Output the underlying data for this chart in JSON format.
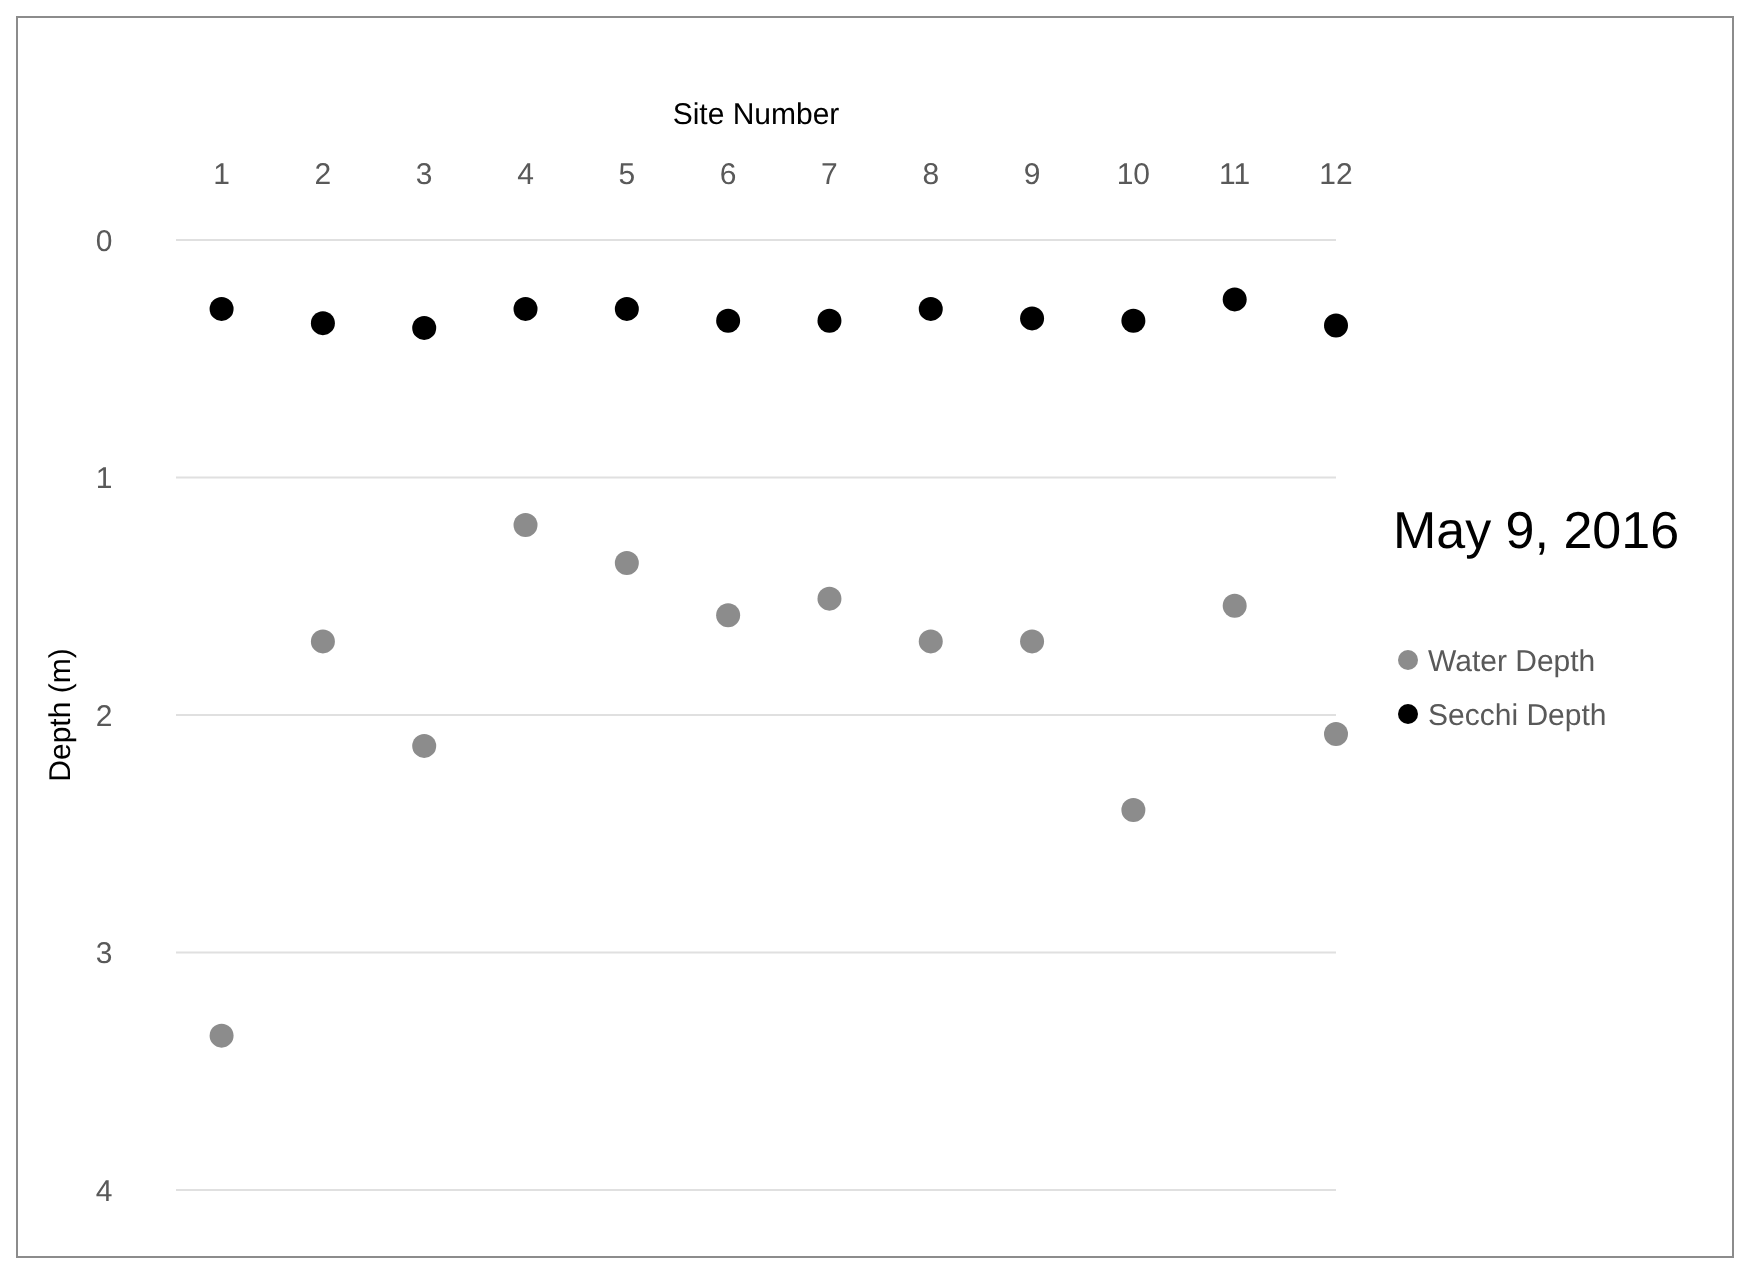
{
  "chart_data": {
    "type": "scatter",
    "title": "May 9, 2016",
    "xlabel": "Site Number",
    "ylabel": "Depth (m)",
    "x": [
      1,
      2,
      3,
      4,
      5,
      6,
      7,
      8,
      9,
      10,
      11,
      12
    ],
    "xlim": [
      0.55,
      12
    ],
    "xticks": [
      1,
      2,
      3,
      4,
      5,
      6,
      7,
      8,
      9,
      10,
      11,
      12
    ],
    "ylim": [
      4,
      0
    ],
    "yticks": [
      0,
      1,
      2,
      3,
      4
    ],
    "grid": "y",
    "legend": "right",
    "marker": "circle",
    "series": [
      {
        "name": "Water Depth",
        "color": "#8c8c8c",
        "values": [
          3.35,
          1.69,
          2.13,
          1.2,
          1.36,
          1.58,
          1.51,
          1.69,
          1.69,
          2.4,
          1.54,
          2.08
        ]
      },
      {
        "name": "Secchi Depth",
        "color": "#000000",
        "values": [
          0.29,
          0.35,
          0.37,
          0.29,
          0.29,
          0.34,
          0.34,
          0.29,
          0.33,
          0.34,
          0.25,
          0.36
        ]
      }
    ]
  }
}
